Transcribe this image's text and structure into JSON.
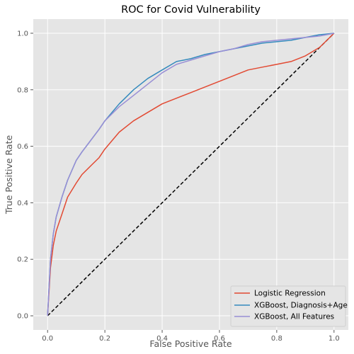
{
  "chart_data": {
    "type": "line",
    "title": "ROC for Covid Vulnerability",
    "xlabel": "False Positive Rate",
    "ylabel": "True Positive Rate",
    "xlim": [
      -0.05,
      1.05
    ],
    "ylim": [
      -0.05,
      1.05
    ],
    "xticks": [
      "0.0",
      "0.2",
      "0.4",
      "0.6",
      "0.8",
      "1.0"
    ],
    "yticks": [
      "0.0",
      "0.2",
      "0.4",
      "0.6",
      "0.8",
      "1.0"
    ],
    "grid": true,
    "legend_position": "lower-right",
    "series": [
      {
        "name": "Logistic Regression",
        "color": "#E24A33",
        "x": [
          0,
          0.01,
          0.02,
          0.03,
          0.05,
          0.07,
          0.1,
          0.12,
          0.15,
          0.18,
          0.2,
          0.25,
          0.3,
          0.35,
          0.4,
          0.45,
          0.5,
          0.55,
          0.6,
          0.65,
          0.7,
          0.75,
          0.8,
          0.85,
          0.9,
          0.95,
          1.0
        ],
        "y": [
          0,
          0.17,
          0.25,
          0.3,
          0.36,
          0.42,
          0.47,
          0.5,
          0.53,
          0.56,
          0.59,
          0.65,
          0.69,
          0.72,
          0.75,
          0.77,
          0.79,
          0.81,
          0.83,
          0.85,
          0.87,
          0.88,
          0.89,
          0.9,
          0.92,
          0.95,
          1.0
        ]
      },
      {
        "name": "XGBoost, Diagnosis+Age",
        "color": "#348ABD",
        "x": [
          0,
          0.01,
          0.02,
          0.03,
          0.05,
          0.07,
          0.1,
          0.12,
          0.15,
          0.18,
          0.2,
          0.25,
          0.3,
          0.35,
          0.4,
          0.45,
          0.5,
          0.55,
          0.6,
          0.65,
          0.7,
          0.75,
          0.8,
          0.85,
          0.9,
          0.95,
          1.0
        ],
        "y": [
          0,
          0.2,
          0.29,
          0.35,
          0.42,
          0.48,
          0.55,
          0.58,
          0.62,
          0.66,
          0.69,
          0.75,
          0.8,
          0.84,
          0.87,
          0.9,
          0.91,
          0.925,
          0.935,
          0.945,
          0.955,
          0.965,
          0.97,
          0.975,
          0.985,
          0.995,
          1.0
        ]
      },
      {
        "name": "XGBoost, All Features",
        "color": "#988ED5",
        "x": [
          0,
          0.01,
          0.02,
          0.03,
          0.05,
          0.07,
          0.1,
          0.12,
          0.15,
          0.18,
          0.2,
          0.25,
          0.3,
          0.35,
          0.4,
          0.45,
          0.5,
          0.55,
          0.6,
          0.65,
          0.7,
          0.75,
          0.8,
          0.85,
          0.9,
          0.95,
          1.0
        ],
        "y": [
          0,
          0.2,
          0.29,
          0.35,
          0.42,
          0.48,
          0.55,
          0.58,
          0.62,
          0.66,
          0.69,
          0.74,
          0.78,
          0.82,
          0.86,
          0.89,
          0.905,
          0.92,
          0.935,
          0.945,
          0.96,
          0.97,
          0.975,
          0.98,
          0.985,
          0.99,
          1.0
        ]
      },
      {
        "name": "",
        "color": "#000000",
        "dashed": true,
        "x": [
          0,
          1
        ],
        "y": [
          0,
          1
        ]
      }
    ]
  }
}
